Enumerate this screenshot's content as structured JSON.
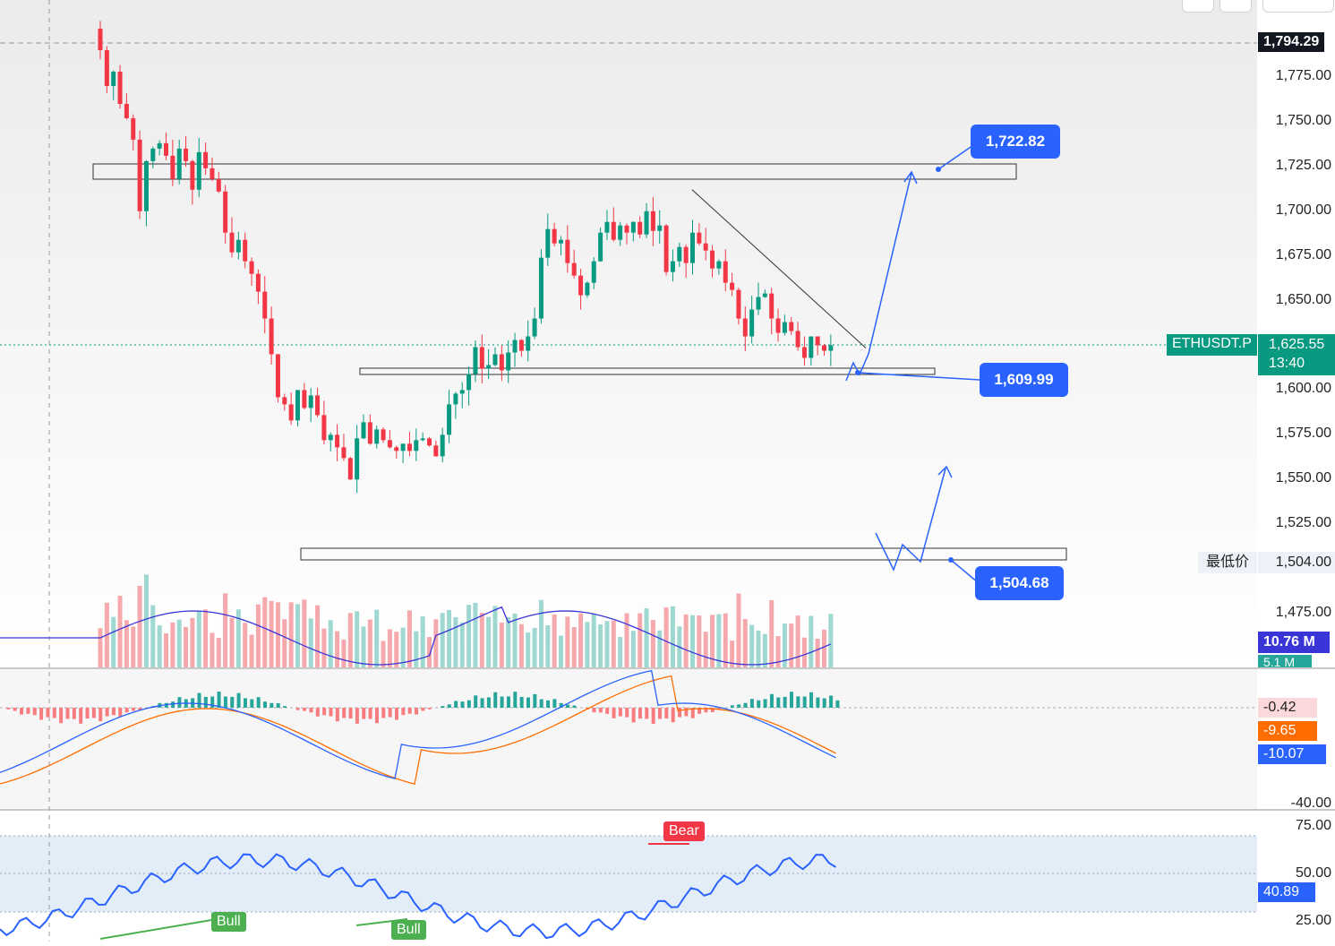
{
  "chart_data": {
    "type": "candlestick",
    "symbol_tag": "ETHUSDT.P",
    "price_axis": {
      "ticks": [
        "1,775.00",
        "1,750.00",
        "1,725.00",
        "1,700.00",
        "1,675.00",
        "1,650.00",
        "1,600.00",
        "1,575.00",
        "1,550.00",
        "1,525.00",
        "1,475.00"
      ],
      "tick_values": [
        1775,
        1750,
        1725,
        1700,
        1675,
        1650,
        1600,
        1575,
        1550,
        1525,
        1475
      ]
    },
    "last_price": {
      "value": "1,625.55",
      "countdown": "13:40",
      "color": "#089981"
    },
    "high_price": {
      "value": "1,794.29",
      "color": "#131722"
    },
    "low_price": {
      "label": "最低价",
      "value": "1,504.00"
    },
    "levels": [
      {
        "name": "resistance",
        "price": 1722.82,
        "label": "1,722.82"
      },
      {
        "name": "support",
        "price": 1609.99,
        "label": "1,609.99"
      },
      {
        "name": "demand",
        "price": 1504.68,
        "label": "1,504.68"
      }
    ],
    "trendline": {
      "from_price": 1712,
      "to_price": 1625
    },
    "candles_close": [
      1790,
      1770,
      1778,
      1760,
      1752,
      1740,
      1700,
      1728,
      1735,
      1738,
      1731,
      1718,
      1735,
      1728,
      1712,
      1733,
      1724,
      1718,
      1711,
      1688,
      1677,
      1684,
      1672,
      1665,
      1655,
      1640,
      1620,
      1596,
      1592,
      1583,
      1600,
      1590,
      1597,
      1586,
      1572,
      1575,
      1568,
      1562,
      1550,
      1573,
      1582,
      1570,
      1578,
      1572,
      1568,
      1566,
      1570,
      1566,
      1572,
      1573,
      1569,
      1563,
      1575,
      1592,
      1598,
      1600,
      1609,
      1624,
      1612,
      1614,
      1620,
      1611,
      1621,
      1628,
      1622,
      1630,
      1640,
      1674,
      1690,
      1682,
      1684,
      1671,
      1664,
      1653,
      1660,
      1672,
      1688,
      1694,
      1684,
      1692,
      1688,
      1694,
      1687,
      1700,
      1689,
      1692,
      1666,
      1672,
      1680,
      1671,
      1688,
      1682,
      1678,
      1668,
      1672,
      1660,
      1656,
      1640,
      1630,
      1645,
      1652,
      1654,
      1640,
      1632,
      1638,
      1633,
      1624,
      1618,
      1630,
      1625,
      1622,
      1625
    ],
    "volume_ma": "10.76 M",
    "volume_ma_color": "#3a35d6",
    "volume_avg": "5.1 M",
    "macd": {
      "values": [
        "-0.42",
        "-9.65",
        "-10.07"
      ],
      "colors": [
        "#f7525f",
        "#ff6d00",
        "#2962ff"
      ],
      "bottom_tick": "-40.00"
    },
    "rsi": {
      "ticks": [
        "75.00",
        "50.00",
        "25.00"
      ],
      "value": "40.89",
      "color": "#2962ff",
      "signals": [
        {
          "label": "Bull",
          "color": "#4caf50"
        },
        {
          "label": "Bull",
          "color": "#4caf50"
        },
        {
          "label": "Bear",
          "color": "#f23645"
        }
      ]
    }
  }
}
